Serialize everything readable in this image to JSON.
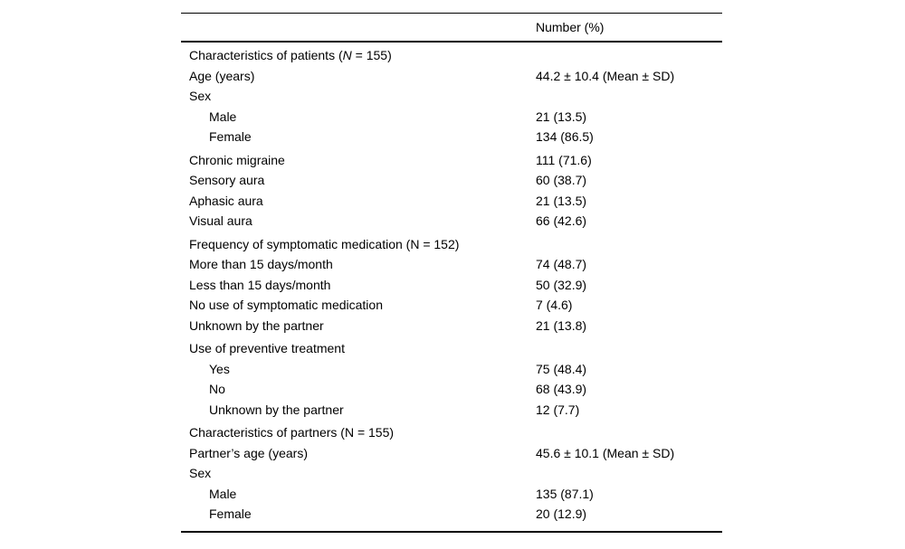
{
  "colors": {
    "background": "#ffffff",
    "text": "#000000",
    "rule": "#000000"
  },
  "table": {
    "header": {
      "value_col": "Number (%)"
    },
    "rows": [
      {
        "label_prefix": "Characteristics of patients (",
        "label_italic": "N",
        "label_suffix": " = 155)",
        "value": "",
        "indent": false,
        "group": false
      },
      {
        "label": "Age (years)",
        "value": "44.2 ± 10.4 (Mean ± SD)",
        "indent": false,
        "group": false
      },
      {
        "label": "Sex",
        "value": "",
        "indent": false,
        "group": false
      },
      {
        "label": "Male",
        "value": "21 (13.5)",
        "indent": true,
        "group": false
      },
      {
        "label": "Female",
        "value": "134 (86.5)",
        "indent": true,
        "group": false
      },
      {
        "label": "Chronic migraine",
        "value": "111 (71.6)",
        "indent": false,
        "group": true
      },
      {
        "label": "Sensory aura",
        "value": "60 (38.7)",
        "indent": false,
        "group": false
      },
      {
        "label": "Aphasic aura",
        "value": "21 (13.5)",
        "indent": false,
        "group": false
      },
      {
        "label": "Visual aura",
        "value": "66 (42.6)",
        "indent": false,
        "group": false
      },
      {
        "label": "Frequency of symptomatic medication (N = 152)",
        "value": "",
        "indent": false,
        "group": true
      },
      {
        "label": "More than 15 days/month",
        "value": "74 (48.7)",
        "indent": false,
        "group": false
      },
      {
        "label": "Less than 15 days/month",
        "value": "50 (32.9)",
        "indent": false,
        "group": false
      },
      {
        "label": "No use of symptomatic medication",
        "value": "7 (4.6)",
        "indent": false,
        "group": false
      },
      {
        "label": "Unknown by the partner",
        "value": "21 (13.8)",
        "indent": false,
        "group": false
      },
      {
        "label": "Use of preventive treatment",
        "value": "",
        "indent": false,
        "group": true
      },
      {
        "label": "Yes",
        "value": "75 (48.4)",
        "indent": true,
        "group": false
      },
      {
        "label": "No",
        "value": "68 (43.9)",
        "indent": true,
        "group": false
      },
      {
        "label": "Unknown by the partner",
        "value": "12 (7.7)",
        "indent": true,
        "group": false
      },
      {
        "label": "Characteristics of partners (N = 155)",
        "value": "",
        "indent": false,
        "group": true
      },
      {
        "label": "Partner’s age (years)",
        "value": "45.6 ± 10.1 (Mean ± SD)",
        "indent": false,
        "group": false
      },
      {
        "label": "Sex",
        "value": "",
        "indent": false,
        "group": false
      },
      {
        "label": "Male",
        "value": "135 (87.1)",
        "indent": true,
        "group": false
      },
      {
        "label": "Female",
        "value": "20 (12.9)",
        "indent": true,
        "group": false
      }
    ]
  }
}
